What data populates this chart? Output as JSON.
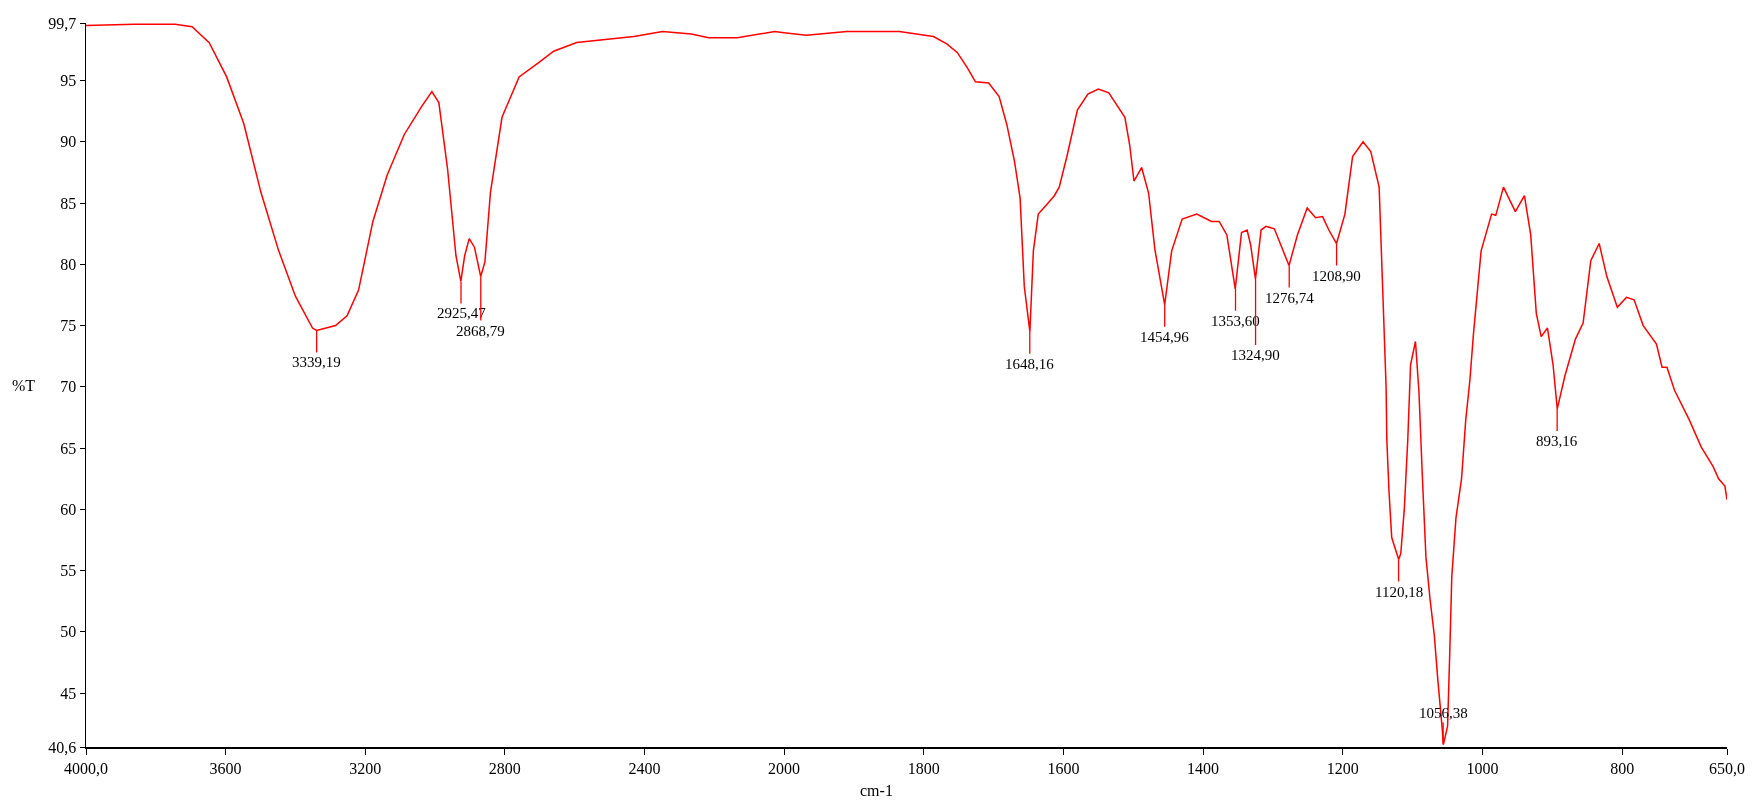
{
  "chart_data": [
    {
      "type": "line",
      "ylabel": "%T",
      "grid": false,
      "marker": "none",
      "line_style": "solid",
      "xlim": [
        4000,
        2000
      ],
      "xticks": [
        {
          "value": 4000,
          "label": "4000,0"
        },
        3600,
        3200,
        2800,
        2400,
        2000
      ],
      "ylim": [
        40.6,
        99.7
      ],
      "yticks": [
        {
          "value": 40.6,
          "label": "40,6"
        },
        45,
        50,
        55,
        60,
        65,
        70,
        75,
        80,
        85,
        90,
        95,
        {
          "value": 99.7,
          "label": "99,7"
        }
      ],
      "series": [
        {
          "color": "#ff0000",
          "x": [
            4000,
            3860,
            3745,
            3696,
            3647,
            3597,
            3548,
            3499,
            3449,
            3400,
            3351,
            3339,
            3285,
            3252,
            3219,
            3178,
            3137,
            3088,
            3038,
            3009,
            2989,
            2964,
            2940,
            2926,
            2915,
            2902,
            2887,
            2869,
            2857,
            2841,
            2808,
            2759,
            2701,
            2660,
            2594,
            2430,
            2348,
            2266,
            2216,
            2134,
            2027,
            2000
          ],
          "values": [
            99.5,
            99.6,
            99.6,
            99.4,
            98.1,
            95.3,
            91.5,
            85.9,
            81.2,
            77.4,
            74.8,
            74.6,
            75.0,
            75.8,
            77.9,
            83.5,
            87.3,
            90.6,
            92.9,
            94.1,
            93.2,
            87.8,
            80.7,
            78.6,
            80.7,
            82.1,
            81.4,
            79.0,
            80.2,
            85.9,
            92.0,
            95.3,
            96.5,
            97.4,
            98.1,
            98.6,
            99.0,
            98.8,
            98.5,
            98.5,
            99.0,
            98.9
          ]
        }
      ],
      "annotations": [
        {
          "text": "3339,19",
          "x": 3339.19,
          "y": 74.6
        },
        {
          "text": "2925,47",
          "x": 2925.47,
          "y": 78.6
        },
        {
          "text": "2868,79",
          "x": 2868.79,
          "y": 79.0
        }
      ]
    },
    {
      "type": "line",
      "xlabel": "cm-1",
      "tick_labels": "x",
      "grid": false,
      "marker": "none",
      "line_style": "solid",
      "xlim": [
        2000,
        650
      ],
      "xticks": [
        1800,
        1600,
        1400,
        1200,
        1000,
        800,
        {
          "value": 650,
          "label": "650,0"
        }
      ],
      "ylim": [
        40.6,
        99.7
      ],
      "series": [
        {
          "color": "#ff0000",
          "x": [
            2000,
            1968,
            1910,
            1835,
            1786,
            1767,
            1752,
            1737,
            1726,
            1707,
            1692,
            1681,
            1670,
            1662,
            1656,
            1648,
            1643,
            1636,
            1625,
            1613,
            1606,
            1595,
            1580,
            1565,
            1550,
            1535,
            1512,
            1505,
            1499,
            1488,
            1478,
            1469,
            1455,
            1445,
            1430,
            1409,
            1388,
            1377,
            1366,
            1354,
            1345,
            1337,
            1332,
            1325,
            1317,
            1310,
            1298,
            1277,
            1265,
            1251,
            1239,
            1229,
            1220,
            1209,
            1197,
            1186,
            1171,
            1160,
            1148,
            1138,
            1137,
            1134,
            1130,
            1120,
            1117,
            1112,
            1107,
            1103,
            1096,
            1091,
            1086,
            1081,
            1075,
            1069,
            1064,
            1058,
            1056,
            1050,
            1047,
            1044,
            1038,
            1030,
            1024,
            1018,
            1013,
            1002,
            987,
            981,
            970,
            953,
            940,
            931,
            923,
            916,
            907,
            899,
            893,
            882,
            867,
            856,
            845,
            833,
            822,
            807,
            794,
            783,
            770,
            751,
            743,
            736,
            725,
            704,
            687,
            670,
            662,
            653,
            650
          ],
          "values": [
            98.9,
            98.7,
            99.0,
            99.0,
            98.6,
            98.0,
            97.3,
            96.0,
            94.9,
            94.8,
            93.7,
            91.4,
            88.4,
            85.4,
            78.2,
            74.5,
            81.1,
            84.1,
            84.8,
            85.6,
            86.3,
            88.8,
            92.6,
            93.9,
            94.3,
            94.0,
            92.0,
            89.7,
            86.8,
            87.9,
            85.8,
            81.2,
            76.7,
            81.1,
            83.7,
            84.1,
            83.5,
            83.5,
            82.4,
            78.0,
            82.6,
            82.8,
            81.6,
            78.8,
            82.8,
            83.1,
            82.9,
            79.9,
            82.4,
            84.6,
            83.8,
            83.9,
            82.8,
            81.7,
            84.1,
            88.8,
            90.0,
            89.2,
            86.3,
            69.9,
            65.7,
            61.6,
            57.7,
            55.9,
            56.4,
            60.0,
            65.7,
            71.8,
            73.7,
            69.6,
            62.5,
            56.1,
            52.6,
            49.7,
            46.1,
            42.3,
            40.8,
            42.3,
            48.1,
            54.5,
            59.3,
            62.5,
            67.3,
            70.6,
            74.3,
            81.1,
            84.1,
            84.0,
            86.3,
            84.3,
            85.6,
            82.4,
            76.0,
            74.1,
            74.8,
            71.8,
            68.2,
            70.9,
            73.9,
            75.2,
            80.3,
            81.7,
            79.0,
            76.5,
            77.3,
            77.1,
            75.0,
            73.5,
            71.6,
            71.6,
            69.7,
            67.3,
            65.1,
            63.5,
            62.5,
            61.9,
            60.8
          ]
        }
      ],
      "annotations": [
        {
          "text": "1648,16",
          "x": 1648.16,
          "y": 74.5
        },
        {
          "text": "1454,96",
          "x": 1454.96,
          "y": 76.7
        },
        {
          "text": "1353,60",
          "x": 1353.6,
          "y": 78.0
        },
        {
          "text": "1324,90",
          "x": 1324.9,
          "y": 78.8
        },
        {
          "text": "1276,74",
          "x": 1276.74,
          "y": 79.9
        },
        {
          "text": "1208,90",
          "x": 1208.9,
          "y": 81.7
        },
        {
          "text": "1120,18",
          "x": 1120.18,
          "y": 55.9
        },
        {
          "text": "1056,38",
          "x": 1056.38,
          "y": 40.8
        },
        {
          "text": "893,16",
          "x": 893.16,
          "y": 68.2
        }
      ]
    }
  ]
}
